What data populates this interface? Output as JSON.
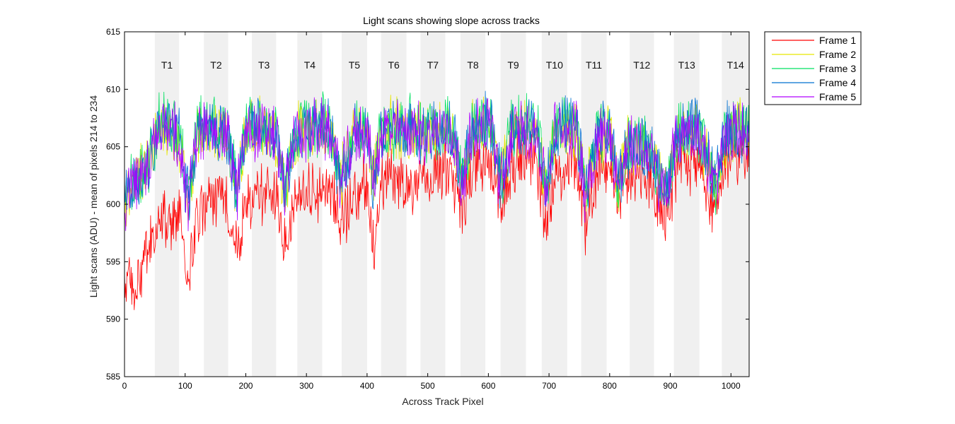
{
  "chart_data": {
    "type": "line",
    "title": "Light scans showing slope across tracks",
    "xlabel": "Across Track Pixel",
    "ylabel": "Light scans (ADU) - mean of pixels 214 to 234",
    "xlim": [
      0,
      1030
    ],
    "ylim": [
      585,
      615
    ],
    "xticks": [
      0,
      100,
      200,
      300,
      400,
      500,
      600,
      700,
      800,
      900,
      1000
    ],
    "yticks": [
      585,
      590,
      595,
      600,
      605,
      610,
      615
    ],
    "legend_position": "outside-top-right",
    "grid": false,
    "tracks": [
      {
        "label": "T1",
        "x_start": 50,
        "x_end": 90
      },
      {
        "label": "T2",
        "x_start": 131,
        "x_end": 171
      },
      {
        "label": "T3",
        "x_start": 210,
        "x_end": 250
      },
      {
        "label": "T4",
        "x_start": 285,
        "x_end": 326
      },
      {
        "label": "T5",
        "x_start": 358,
        "x_end": 400
      },
      {
        "label": "T6",
        "x_start": 423,
        "x_end": 465
      },
      {
        "label": "T7",
        "x_start": 488,
        "x_end": 529
      },
      {
        "label": "T8",
        "x_start": 554,
        "x_end": 595
      },
      {
        "label": "T9",
        "x_start": 620,
        "x_end": 662
      },
      {
        "label": "T10",
        "x_start": 688,
        "x_end": 730
      },
      {
        "label": "T11",
        "x_start": 753,
        "x_end": 795
      },
      {
        "label": "T12",
        "x_start": 833,
        "x_end": 873
      },
      {
        "label": "T13",
        "x_start": 906,
        "x_end": 948
      },
      {
        "label": "T14",
        "x_start": 985,
        "x_end": 1030
      }
    ],
    "series": [
      {
        "name": "Frame 1",
        "color": "#ff0000",
        "x": [
          0,
          20,
          40,
          55,
          70,
          90,
          105,
          120,
          150,
          170,
          185,
          200,
          225,
          250,
          265,
          280,
          300,
          320,
          340,
          355,
          380,
          400,
          410,
          425,
          440,
          460,
          480,
          500,
          520,
          540,
          555,
          575,
          590,
          605,
          620,
          640,
          660,
          680,
          695,
          710,
          730,
          745,
          760,
          780,
          800,
          815,
          830,
          850,
          870,
          880,
          895,
          910,
          930,
          945,
          960,
          975,
          990,
          1010,
          1030
        ],
        "values": [
          593,
          592.5,
          596,
          598,
          598.5,
          599,
          593,
          599,
          600.5,
          600,
          596,
          600,
          601,
          600.8,
          596,
          600,
          601.5,
          601,
          601.5,
          598,
          601,
          602,
          596,
          602,
          602.5,
          602,
          601,
          602,
          603,
          603,
          599,
          603,
          603.5,
          603.5,
          599,
          603.5,
          604,
          603.5,
          598,
          603,
          603.5,
          603.5,
          598,
          603,
          603.5,
          601,
          603,
          603,
          602,
          600,
          599,
          603,
          603.5,
          603.5,
          601,
          600,
          603.5,
          604,
          604.5
        ]
      },
      {
        "name": "Frame 2",
        "color": "#e6e600",
        "x": [
          0,
          20,
          40,
          55,
          70,
          90,
          105,
          120,
          150,
          170,
          185,
          200,
          225,
          250,
          265,
          280,
          300,
          320,
          340,
          355,
          380,
          400,
          410,
          425,
          440,
          460,
          480,
          500,
          520,
          540,
          555,
          575,
          590,
          605,
          620,
          640,
          660,
          680,
          695,
          710,
          730,
          745,
          760,
          780,
          800,
          815,
          830,
          850,
          870,
          880,
          895,
          910,
          930,
          945,
          960,
          975,
          990,
          1010,
          1030
        ],
        "values": [
          600.5,
          602,
          603.5,
          606.5,
          607,
          606,
          600,
          606.5,
          606.5,
          606,
          601,
          606.5,
          606.5,
          606,
          601,
          606,
          606.5,
          606.5,
          606.5,
          602,
          606,
          606.5,
          602,
          606.5,
          606.5,
          606.5,
          606.5,
          606,
          606.5,
          606.5,
          602,
          606.5,
          607,
          607,
          601.5,
          606.5,
          606.5,
          606.5,
          601,
          606.5,
          606.5,
          606.5,
          601,
          606,
          606,
          602,
          605,
          605,
          604.5,
          602,
          601,
          606,
          606.5,
          606.5,
          604,
          601.5,
          606,
          606.5,
          606.5
        ]
      },
      {
        "name": "Frame 3",
        "color": "#00e060",
        "x": [
          0,
          20,
          40,
          55,
          70,
          90,
          105,
          120,
          150,
          170,
          185,
          200,
          225,
          250,
          265,
          280,
          300,
          320,
          340,
          355,
          380,
          400,
          410,
          425,
          440,
          460,
          480,
          500,
          520,
          540,
          555,
          575,
          590,
          605,
          620,
          640,
          660,
          680,
          695,
          710,
          730,
          745,
          760,
          780,
          800,
          815,
          830,
          850,
          870,
          880,
          895,
          910,
          930,
          945,
          960,
          975,
          990,
          1010,
          1030
        ],
        "values": [
          600.8,
          602.3,
          603.8,
          606.8,
          607.2,
          606.3,
          600.3,
          606.8,
          606.8,
          606.3,
          601.3,
          606.8,
          606.8,
          606.3,
          601.3,
          606.3,
          606.8,
          606.8,
          606.8,
          602.3,
          606.3,
          606.8,
          602.3,
          606.8,
          606.8,
          606.8,
          606.8,
          606.3,
          606.8,
          606.8,
          602.3,
          606.8,
          607.2,
          607.2,
          601.8,
          606.8,
          606.8,
          606.8,
          601.3,
          606.8,
          606.8,
          606.8,
          601.3,
          606.3,
          606.3,
          602.3,
          605.3,
          605.3,
          604.8,
          602.3,
          601.3,
          606.3,
          606.8,
          606.8,
          604.3,
          601.8,
          606.3,
          606.8,
          606.8
        ]
      },
      {
        "name": "Frame 4",
        "color": "#0070d0",
        "x": [
          0,
          20,
          40,
          55,
          70,
          90,
          105,
          120,
          150,
          170,
          185,
          200,
          225,
          250,
          265,
          280,
          300,
          320,
          340,
          355,
          380,
          400,
          410,
          425,
          440,
          460,
          480,
          500,
          520,
          540,
          555,
          575,
          590,
          605,
          620,
          640,
          660,
          680,
          695,
          710,
          730,
          745,
          760,
          780,
          800,
          815,
          830,
          850,
          870,
          880,
          895,
          910,
          930,
          945,
          960,
          975,
          990,
          1010,
          1030
        ],
        "values": [
          600.6,
          602.1,
          603.6,
          606.6,
          607.1,
          606.1,
          600.1,
          606.6,
          606.6,
          606.1,
          601.1,
          606.6,
          606.6,
          606.1,
          601.1,
          606.1,
          606.6,
          606.6,
          606.6,
          602.1,
          606.1,
          606.6,
          602.1,
          606.6,
          606.6,
          606.6,
          606.6,
          606.1,
          606.6,
          606.6,
          602.1,
          606.6,
          607.1,
          607.1,
          601.6,
          606.6,
          606.6,
          606.6,
          601.1,
          606.6,
          606.6,
          606.6,
          601.1,
          606.1,
          606.1,
          602.1,
          605.1,
          605.1,
          604.6,
          602.1,
          601.1,
          606.1,
          606.6,
          606.6,
          604.1,
          601.6,
          606.1,
          606.6,
          606.6
        ]
      },
      {
        "name": "Frame 5",
        "color": "#b000ff",
        "x": [
          0,
          20,
          40,
          55,
          70,
          90,
          105,
          120,
          150,
          170,
          185,
          200,
          225,
          250,
          265,
          280,
          300,
          320,
          340,
          355,
          380,
          400,
          410,
          425,
          440,
          460,
          480,
          500,
          520,
          540,
          555,
          575,
          590,
          605,
          620,
          640,
          660,
          680,
          695,
          710,
          730,
          745,
          760,
          780,
          800,
          815,
          830,
          850,
          870,
          880,
          895,
          910,
          930,
          945,
          960,
          975,
          990,
          1010,
          1030
        ],
        "values": [
          600.4,
          601.9,
          603.4,
          606.4,
          606.9,
          605.9,
          599.9,
          606.4,
          606.4,
          605.9,
          600.9,
          606.4,
          606.4,
          605.9,
          600.9,
          605.9,
          606.4,
          606.4,
          606.4,
          601.9,
          605.9,
          606.4,
          601.9,
          606.4,
          606.4,
          606.4,
          606.4,
          605.9,
          606.4,
          606.4,
          601.9,
          606.4,
          606.9,
          606.9,
          601.4,
          606.4,
          606.4,
          606.4,
          600.9,
          606.4,
          606.4,
          606.4,
          600.9,
          605.9,
          605.9,
          601.9,
          604.9,
          604.9,
          604.4,
          601.9,
          600.9,
          605.9,
          606.4,
          606.4,
          603.9,
          601.4,
          605.9,
          606.4,
          606.4
        ]
      }
    ]
  }
}
